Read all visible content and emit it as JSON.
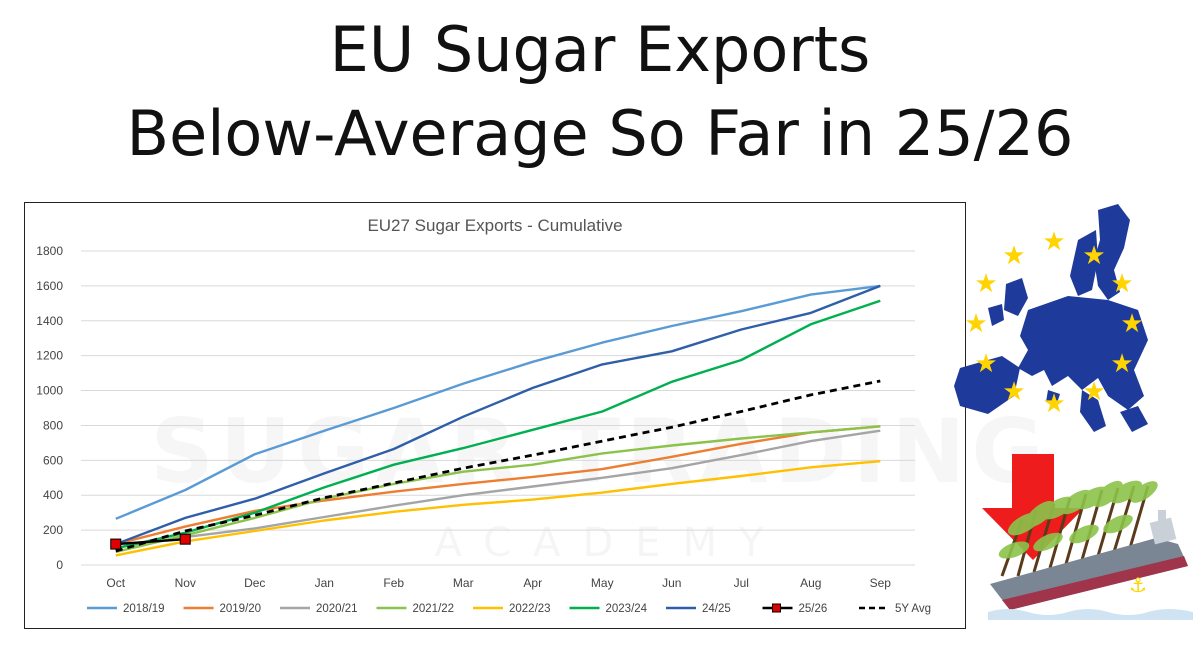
{
  "headline": {
    "line1": "EU Sugar Exports",
    "line2": "Below-Average So Far in 25/26"
  },
  "chart_data": {
    "type": "line",
    "title": "EU27 Sugar Exports - Cumulative",
    "xlabel": "",
    "ylabel": "",
    "categories": [
      "Oct",
      "Nov",
      "Dec",
      "Jan",
      "Feb",
      "Mar",
      "Apr",
      "May",
      "Jun",
      "Jul",
      "Aug",
      "Sep"
    ],
    "ylim": [
      0,
      1800
    ],
    "yticks": [
      0,
      200,
      400,
      600,
      800,
      1000,
      1200,
      1400,
      1600,
      1800
    ],
    "grid": true,
    "legend_position": "bottom",
    "series": [
      {
        "name": "2018/19",
        "color": "#5b9bd5",
        "dash": "solid",
        "values": [
          265,
          430,
          635,
          770,
          900,
          1040,
          1165,
          1275,
          1370,
          1455,
          1550,
          1600
        ]
      },
      {
        "name": "2019/20",
        "color": "#ed7d31",
        "dash": "solid",
        "values": [
          120,
          220,
          310,
          370,
          420,
          465,
          505,
          550,
          620,
          695,
          760,
          795
        ]
      },
      {
        "name": "2020/21",
        "color": "#a5a5a5",
        "dash": "solid",
        "values": [
          100,
          160,
          210,
          275,
          340,
          400,
          450,
          500,
          555,
          630,
          710,
          770
        ]
      },
      {
        "name": "2021/22",
        "color": "#8bc34a",
        "dash": "solid",
        "values": [
          75,
          170,
          270,
          380,
          465,
          535,
          575,
          640,
          685,
          725,
          760,
          795
        ]
      },
      {
        "name": "2022/23",
        "color": "#ffc000",
        "dash": "solid",
        "values": [
          55,
          135,
          195,
          255,
          305,
          345,
          375,
          415,
          465,
          510,
          560,
          595
        ]
      },
      {
        "name": "2023/24",
        "color": "#00b050",
        "dash": "solid",
        "values": [
          95,
          185,
          300,
          445,
          575,
          670,
          775,
          880,
          1050,
          1175,
          1380,
          1515
        ]
      },
      {
        "name": "24/25",
        "color": "#2e5fa8",
        "dash": "solid",
        "values": [
          120,
          270,
          380,
          525,
          665,
          850,
          1015,
          1150,
          1225,
          1350,
          1445,
          1600
        ]
      },
      {
        "name": "25/26",
        "color": "#000000",
        "dash": "solid",
        "marker": "square",
        "marker_color": "#e00000",
        "values": [
          120,
          148,
          null,
          null,
          null,
          null,
          null,
          null,
          null,
          null,
          null,
          null
        ]
      },
      {
        "name": "5Y Avg",
        "color": "#000000",
        "dash": "dashed",
        "values": [
          80,
          195,
          285,
          385,
          470,
          555,
          630,
          710,
          790,
          880,
          975,
          1055
        ]
      }
    ]
  }
}
